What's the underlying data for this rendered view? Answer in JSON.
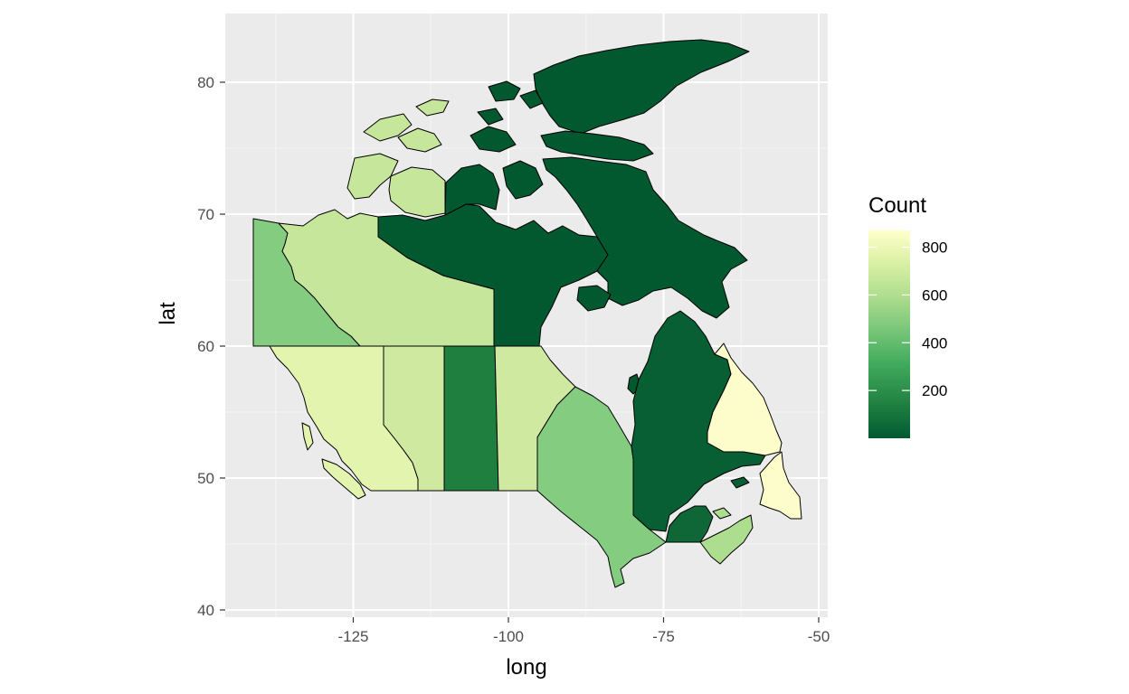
{
  "chart_data": {
    "type": "choropleth-map",
    "xlabel": "long",
    "ylabel": "lat",
    "xlim": [
      -144,
      -49
    ],
    "ylim": [
      40,
      85
    ],
    "x_ticks": [
      -125,
      -100,
      -75,
      -50
    ],
    "x_tick_labels": [
      "-125",
      "-100",
      "-75",
      "-50"
    ],
    "y_ticks": [
      40,
      50,
      60,
      70,
      80
    ],
    "y_tick_labels": [
      "40",
      "50",
      "60",
      "70",
      "80"
    ],
    "grid": true,
    "legend": {
      "title": "Count",
      "position": "right",
      "range": [
        0,
        870
      ],
      "breaks": [
        200,
        400,
        600,
        800
      ],
      "break_labels": [
        "200",
        "400",
        "600",
        "800"
      ],
      "palette": [
        "#005a32",
        "#238443",
        "#41ab5d",
        "#78c679",
        "#addd8e",
        "#d9f0a3",
        "#ffffcc"
      ]
    },
    "regions": [
      {
        "name": "Yukon",
        "count": 450,
        "color": "#84cc7f"
      },
      {
        "name": "Northwest Territories",
        "count": 600,
        "color": "#c6e79b"
      },
      {
        "name": "Nunavut",
        "count": 20,
        "color": "#02582f"
      },
      {
        "name": "British Columbia",
        "count": 750,
        "color": "#e2f4ae"
      },
      {
        "name": "Alberta",
        "count": 650,
        "color": "#cfeaa0"
      },
      {
        "name": "Saskatchewan",
        "count": 200,
        "color": "#1f7f3e"
      },
      {
        "name": "Manitoba",
        "count": 650,
        "color": "#cfeaa0"
      },
      {
        "name": "Ontario",
        "count": 450,
        "color": "#84cc7f"
      },
      {
        "name": "Quebec",
        "count": 40,
        "color": "#085f33"
      },
      {
        "name": "Newfoundland and Labrador",
        "count": 850,
        "color": "#fdfdcc"
      },
      {
        "name": "New Brunswick",
        "count": 80,
        "color": "#0f6636"
      },
      {
        "name": "Nova Scotia",
        "count": 550,
        "color": "#addd8e"
      },
      {
        "name": "Prince Edward Island",
        "count": 550,
        "color": "#addd8e"
      }
    ]
  }
}
